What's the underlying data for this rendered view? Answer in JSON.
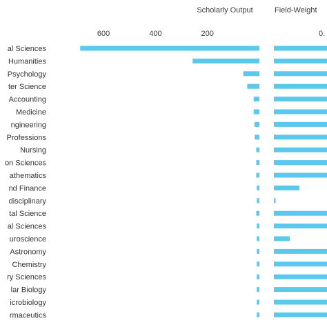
{
  "chart_data": [
    {
      "type": "bar",
      "orientation": "horizontal",
      "title": "Scholarly Output",
      "xlim": [
        0,
        720
      ],
      "xticks": [
        "600",
        "400",
        "200"
      ],
      "xtick_values": [
        600,
        400,
        200
      ],
      "reversed_axis": true,
      "color": "#5bc8ee",
      "categories": [
        "al Sciences",
        "Humanities",
        "Psychology",
        "ter Science",
        "Accounting",
        "Medicine",
        "ngineering",
        "Professions",
        "Nursing",
        "on Sciences",
        "athematics",
        "nd Finance",
        "disciplinary",
        "tal Science",
        "al Sciences",
        "uroscience",
        "Astronomy",
        "Chemistry",
        "ry Sciences",
        "lar Biology",
        "icrobiology",
        "rmaceutics"
      ],
      "values": [
        690,
        257,
        62,
        47,
        22,
        22,
        19,
        18,
        12,
        12,
        12,
        10,
        10,
        12,
        10,
        10,
        10,
        10,
        10,
        10,
        10,
        10
      ]
    },
    {
      "type": "bar",
      "orientation": "horizontal",
      "title": "Field-Weight",
      "xticks": [
        "0."
      ],
      "xlim": [
        0,
        1
      ],
      "color": "#5bc8ee",
      "values": [
        1,
        1,
        1,
        1,
        1,
        1,
        1,
        1,
        1,
        1,
        1,
        0.45,
        0.03,
        1,
        1,
        0.28,
        1,
        1,
        1,
        1,
        1,
        1
      ],
      "cut_off": true
    }
  ]
}
